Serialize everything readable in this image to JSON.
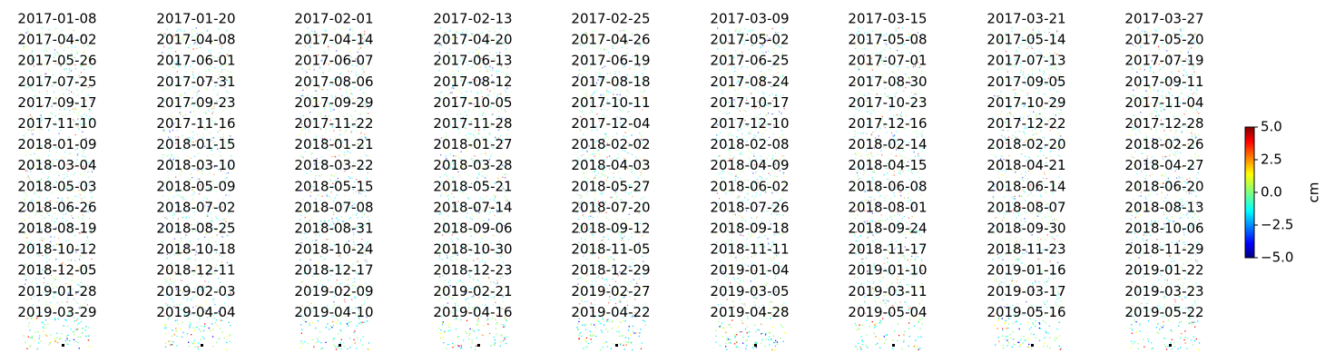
{
  "titles": [
    "2017-01-08",
    "2017-01-20",
    "2017-02-01",
    "2017-02-13",
    "2017-02-25",
    "2017-03-09",
    "2017-03-15",
    "2017-03-21",
    "2017-03-27",
    "2017-04-02",
    "2017-04-08",
    "2017-04-14",
    "2017-04-20",
    "2017-04-26",
    "2017-05-02",
    "2017-05-08",
    "2017-05-14",
    "2017-05-20",
    "2017-05-26",
    "2017-06-01",
    "2017-06-07",
    "2017-06-13",
    "2017-06-19",
    "2017-06-25",
    "2017-07-01",
    "2017-07-13",
    "2017-07-19",
    "2017-07-25",
    "2017-07-31",
    "2017-08-06",
    "2017-08-12",
    "2017-08-18",
    "2017-08-24",
    "2017-08-30",
    "2017-09-05",
    "2017-09-11",
    "2017-09-17",
    "2017-09-23",
    "2017-09-29",
    "2017-10-05",
    "2017-10-11",
    "2017-10-17",
    "2017-10-23",
    "2017-10-29",
    "2017-11-04",
    "2017-11-10",
    "2017-11-16",
    "2017-11-22",
    "2017-11-28",
    "2017-12-04",
    "2017-12-10",
    "2017-12-16",
    "2017-12-22",
    "2017-12-28",
    "2018-01-09",
    "2018-01-15",
    "2018-01-21",
    "2018-01-27",
    "2018-02-02",
    "2018-02-08",
    "2018-02-14",
    "2018-02-20",
    "2018-02-26",
    "2018-03-04",
    "2018-03-10",
    "2018-03-22",
    "2018-03-28",
    "2018-04-03",
    "2018-04-09",
    "2018-04-15",
    "2018-04-21",
    "2018-04-27",
    "2018-05-03",
    "2018-05-09",
    "2018-05-15",
    "2018-05-21",
    "2018-05-27",
    "2018-06-02",
    "2018-06-08",
    "2018-06-14",
    "2018-06-20",
    "2018-06-26",
    "2018-07-02",
    "2018-07-08",
    "2018-07-14",
    "2018-07-20",
    "2018-07-26",
    "2018-08-01",
    "2018-08-07",
    "2018-08-13",
    "2018-08-19",
    "2018-08-25",
    "2018-08-31",
    "2018-09-06",
    "2018-09-12",
    "2018-09-18",
    "2018-09-24",
    "2018-09-30",
    "2018-10-06",
    "2018-10-12",
    "2018-10-18",
    "2018-10-24",
    "2018-10-30",
    "2018-11-05",
    "2018-11-11",
    "2018-11-17",
    "2018-11-23",
    "2018-11-29",
    "2018-12-05",
    "2018-12-11",
    "2018-12-17",
    "2018-12-23",
    "2018-12-29",
    "2019-01-04",
    "2019-01-10",
    "2019-01-16",
    "2019-01-22",
    "2019-01-28",
    "2019-02-03",
    "2019-02-09",
    "2019-02-21",
    "2019-02-27",
    "2019-03-05",
    "2019-03-11",
    "2019-03-17",
    "2019-03-23",
    "2019-03-29",
    "2019-04-04",
    "2019-04-10",
    "2019-04-16",
    "2019-04-22",
    "2019-04-28",
    "2019-05-04",
    "2019-05-16",
    "2019-05-22"
  ],
  "colorbar": {
    "label": "cm",
    "colormap": "jet",
    "lim": [
      -5,
      5
    ],
    "ticks": [
      {
        "value": -5,
        "label": "−5.0"
      },
      {
        "value": -2.5,
        "label": "−2.5"
      },
      {
        "value": 0,
        "label": "0.0"
      },
      2.5,
      {
        "value": 5,
        "label": "5.0"
      }
    ]
  }
}
